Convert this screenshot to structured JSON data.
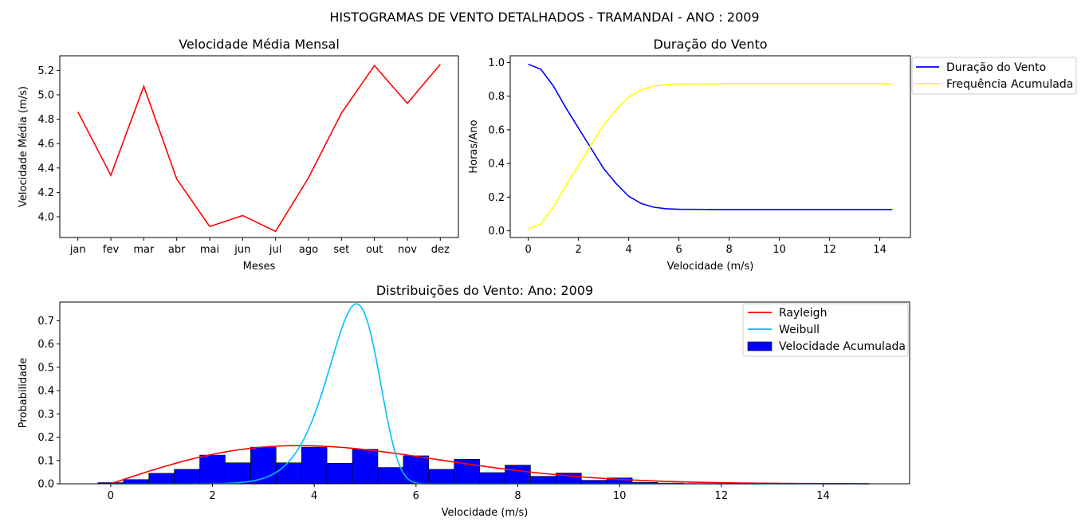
{
  "figure": {
    "suptitle": "HISTOGRAMAS DE VENTO DETALHADOS - TRAMANDAI - ANO : 2009"
  },
  "chart_data": [
    {
      "type": "line",
      "title": "Velocidade Média Mensal",
      "xlabel": "Meses",
      "ylabel": "Velocidade Média (m/s)",
      "categories": [
        "jan",
        "fev",
        "mar",
        "abr",
        "mai",
        "jun",
        "jul",
        "ago",
        "set",
        "out",
        "nov",
        "dez"
      ],
      "values": [
        4.86,
        4.34,
        5.07,
        4.31,
        3.92,
        4.01,
        3.88,
        4.32,
        4.85,
        5.24,
        4.93,
        5.25
      ],
      "ylim": [
        3.83,
        5.32
      ],
      "yticks": [
        4.0,
        4.2,
        4.4,
        4.6,
        4.8,
        5.0,
        5.2
      ],
      "color": "#ff0000",
      "grid": false
    },
    {
      "type": "line",
      "title": "Duração do Vento",
      "xlabel": "Velocidade (m/s)",
      "ylabel": "Horas/Ano",
      "xlim": [
        -0.72,
        15.22
      ],
      "ylim": [
        -0.04,
        1.04
      ],
      "xticks": [
        0,
        2,
        4,
        6,
        8,
        10,
        12,
        14
      ],
      "yticks": [
        0.0,
        0.2,
        0.4,
        0.6,
        0.8,
        1.0
      ],
      "x": [
        0,
        0.5,
        1,
        1.5,
        2,
        2.5,
        3,
        3.5,
        4,
        4.5,
        5,
        5.5,
        6,
        7,
        8,
        9,
        10,
        11,
        12,
        13,
        14,
        14.5
      ],
      "series": [
        {
          "name": "Duração do Vento",
          "color": "#0000ff",
          "values": [
            0.99,
            0.96,
            0.86,
            0.73,
            0.61,
            0.49,
            0.37,
            0.28,
            0.205,
            0.162,
            0.14,
            0.131,
            0.128,
            0.127,
            0.126,
            0.126,
            0.126,
            0.126,
            0.126,
            0.126,
            0.126,
            0.126
          ]
        },
        {
          "name": "Frequência Acumulada",
          "color": "#ffff00",
          "values": [
            0.01,
            0.04,
            0.14,
            0.27,
            0.39,
            0.51,
            0.63,
            0.72,
            0.795,
            0.838,
            0.86,
            0.869,
            0.872,
            0.873,
            0.874,
            0.874,
            0.874,
            0.874,
            0.874,
            0.874,
            0.874,
            0.874
          ]
        }
      ],
      "legend": "outside-top-right",
      "grid": false
    },
    {
      "type": "bar",
      "title": "Distribuições do Vento: Ano: 2009",
      "xlabel": "Velocidade (m/s)",
      "ylabel": "Probabilidade",
      "xlim": [
        -1.0,
        15.7
      ],
      "ylim": [
        0,
        0.78
      ],
      "xticks": [
        0,
        2,
        4,
        6,
        8,
        10,
        12,
        14
      ],
      "yticks": [
        0.0,
        0.1,
        0.2,
        0.3,
        0.4,
        0.5,
        0.6,
        0.7
      ],
      "histogram": {
        "name": "Velocidade Acumulada",
        "color": "#0000ff",
        "edge_color": "#000000",
        "bin_width": 0.5,
        "bin_centers": [
          0,
          0.5,
          1,
          1.5,
          2,
          2.5,
          3,
          3.5,
          4,
          4.5,
          5,
          5.5,
          6,
          6.5,
          7,
          7.5,
          8,
          8.5,
          9,
          9.5,
          10,
          10.5,
          11
        ],
        "values": [
          0.005,
          0.018,
          0.045,
          0.062,
          0.123,
          0.09,
          0.157,
          0.09,
          0.157,
          0.088,
          0.148,
          0.07,
          0.12,
          0.062,
          0.105,
          0.048,
          0.08,
          0.032,
          0.046,
          0.015,
          0.025,
          0.006,
          0.003
        ]
      },
      "curves": [
        {
          "name": "Rayleigh",
          "color": "#ff0000",
          "x_range": [
            0,
            14.9
          ],
          "sigma": 3.7
        },
        {
          "name": "Weibull",
          "color": "#00bfff",
          "x_range": [
            0,
            14.9
          ],
          "k": 10.2,
          "c": 4.88
        }
      ],
      "legend": "top-right",
      "grid": false
    }
  ]
}
